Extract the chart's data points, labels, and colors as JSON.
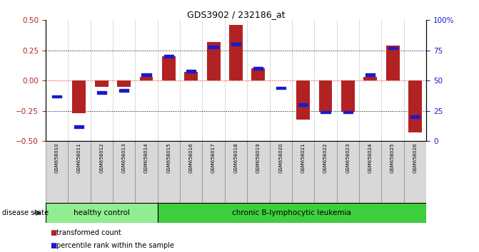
{
  "title": "GDS3902 / 232186_at",
  "samples": [
    "GSM658010",
    "GSM658011",
    "GSM658012",
    "GSM658013",
    "GSM658014",
    "GSM658015",
    "GSM658016",
    "GSM658017",
    "GSM658018",
    "GSM658019",
    "GSM658020",
    "GSM658021",
    "GSM658022",
    "GSM658023",
    "GSM658024",
    "GSM658025",
    "GSM658026"
  ],
  "red_bars": [
    0.0,
    -0.27,
    -0.05,
    -0.05,
    0.03,
    0.2,
    0.07,
    0.32,
    0.46,
    0.1,
    0.0,
    -0.32,
    -0.26,
    -0.26,
    0.03,
    0.29,
    -0.43
  ],
  "blue_pct": [
    37,
    12,
    40,
    42,
    55,
    70,
    58,
    78,
    80,
    60,
    44,
    30,
    24,
    24,
    55,
    77,
    20
  ],
  "ylim_left": [
    -0.5,
    0.5
  ],
  "ylim_right": [
    0,
    100
  ],
  "yticks_left": [
    -0.5,
    -0.25,
    0,
    0.25,
    0.5
  ],
  "yticks_right": [
    0,
    25,
    50,
    75,
    100
  ],
  "hlines_dotted": [
    0.25,
    -0.25
  ],
  "n_healthy": 5,
  "group1_label": "healthy control",
  "group2_label": "chronic B-lymphocytic leukemia",
  "legend_red": "transformed count",
  "legend_blue": "percentile rank within the sample",
  "disease_state_label": "disease state",
  "bar_color": "#b22222",
  "square_color": "#1a1acc",
  "bar_width": 0.6,
  "hc_box_color": "#90ee90",
  "cll_box_color": "#3ecf3e",
  "box_edge_color": "#aaaaaa",
  "vline_color": "#cccccc"
}
